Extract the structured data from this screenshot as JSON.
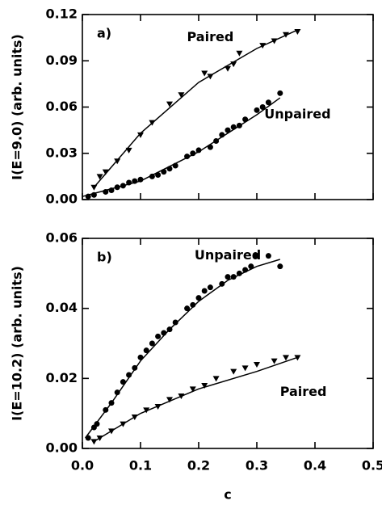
{
  "chart_data": [
    {
      "type": "scatter",
      "panel_label": "a)",
      "ylabel": "I(E=9.0) (arb. units)",
      "xlim": [
        0,
        0.5
      ],
      "ylim": [
        0,
        0.12
      ],
      "yticks": [
        {
          "value": 0,
          "label": "0.00"
        },
        0.03,
        0.06,
        0.09,
        0.12
      ],
      "series": [
        {
          "name": "Paired",
          "marker": "triangle",
          "color": "#000",
          "x": [
            0.02,
            0.03,
            0.04,
            0.06,
            0.08,
            0.1,
            0.12,
            0.15,
            0.17,
            0.21,
            0.22,
            0.25,
            0.26,
            0.27,
            0.31,
            0.33,
            0.35,
            0.37
          ],
          "values": [
            0.008,
            0.015,
            0.018,
            0.025,
            0.032,
            0.042,
            0.05,
            0.062,
            0.068,
            0.082,
            0.08,
            0.085,
            0.088,
            0.095,
            0.1,
            0.103,
            0.107,
            0.109
          ],
          "fit_x": [
            0.02,
            0.1,
            0.2,
            0.3,
            0.37
          ],
          "fit_values": [
            0.008,
            0.043,
            0.076,
            0.098,
            0.11
          ]
        },
        {
          "name": "Unpaired",
          "marker": "circle",
          "color": "#000",
          "x": [
            0.01,
            0.02,
            0.04,
            0.05,
            0.06,
            0.07,
            0.08,
            0.09,
            0.1,
            0.12,
            0.13,
            0.14,
            0.15,
            0.16,
            0.18,
            0.19,
            0.2,
            0.22,
            0.23,
            0.24,
            0.25,
            0.26,
            0.27,
            0.28,
            0.3,
            0.31,
            0.32,
            0.34
          ],
          "values": [
            0.002,
            0.003,
            0.005,
            0.006,
            0.008,
            0.009,
            0.011,
            0.012,
            0.013,
            0.015,
            0.016,
            0.018,
            0.02,
            0.022,
            0.028,
            0.03,
            0.032,
            0.034,
            0.038,
            0.042,
            0.045,
            0.047,
            0.048,
            0.052,
            0.058,
            0.06,
            0.063,
            0.069
          ],
          "fit_x": [
            0,
            0.1,
            0.2,
            0.3,
            0.34
          ],
          "fit_values": [
            0.002,
            0.012,
            0.031,
            0.055,
            0.066
          ]
        }
      ]
    },
    {
      "type": "scatter",
      "panel_label": "b)",
      "ylabel": "I(E=10.2) (arb. units)",
      "xlabel": "c",
      "xlim": [
        0,
        0.5
      ],
      "ylim": [
        0,
        0.06
      ],
      "xticks": [
        {
          "value": 0,
          "label": "0.0"
        },
        0.1,
        0.2,
        0.3,
        0.4,
        0.5
      ],
      "yticks": [
        {
          "value": 0,
          "label": "0.00"
        },
        0.02,
        0.04,
        0.06
      ],
      "series": [
        {
          "name": "Unpaired",
          "marker": "circle",
          "color": "#000",
          "x": [
            0.01,
            0.02,
            0.025,
            0.04,
            0.05,
            0.06,
            0.07,
            0.08,
            0.09,
            0.1,
            0.11,
            0.12,
            0.13,
            0.14,
            0.15,
            0.16,
            0.18,
            0.19,
            0.2,
            0.21,
            0.22,
            0.24,
            0.25,
            0.26,
            0.27,
            0.28,
            0.29,
            0.3,
            0.32,
            0.34
          ],
          "values": [
            0.003,
            0.006,
            0.007,
            0.011,
            0.013,
            0.016,
            0.019,
            0.021,
            0.023,
            0.026,
            0.028,
            0.03,
            0.032,
            0.033,
            0.034,
            0.036,
            0.04,
            0.041,
            0.043,
            0.045,
            0.046,
            0.047,
            0.049,
            0.049,
            0.05,
            0.051,
            0.052,
            0.055,
            0.055,
            0.052
          ],
          "fit_x": [
            0.005,
            0.05,
            0.1,
            0.15,
            0.2,
            0.25,
            0.3,
            0.34
          ],
          "fit_values": [
            0.003,
            0.013,
            0.025,
            0.034,
            0.042,
            0.048,
            0.052,
            0.054
          ]
        },
        {
          "name": "Paired",
          "marker": "triangle",
          "color": "#000",
          "x": [
            0.02,
            0.03,
            0.05,
            0.07,
            0.09,
            0.11,
            0.13,
            0.15,
            0.17,
            0.19,
            0.21,
            0.23,
            0.26,
            0.28,
            0.3,
            0.33,
            0.35,
            0.37
          ],
          "values": [
            0.002,
            0.003,
            0.005,
            0.007,
            0.009,
            0.011,
            0.012,
            0.014,
            0.015,
            0.017,
            0.018,
            0.02,
            0.022,
            0.023,
            0.024,
            0.025,
            0.026,
            0.026
          ],
          "fit_x": [
            0.02,
            0.1,
            0.2,
            0.3,
            0.37
          ],
          "fit_values": [
            0.002,
            0.01,
            0.017,
            0.022,
            0.026
          ]
        }
      ]
    }
  ]
}
